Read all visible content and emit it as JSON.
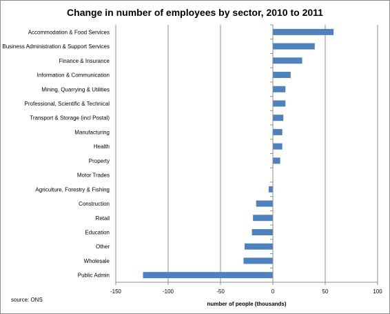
{
  "chart_data": {
    "type": "bar",
    "orientation": "horizontal",
    "title": "Change in number of employees by sector, 2010 to 2011",
    "xlabel": "number of people (thousands)",
    "ylabel": "",
    "source": "source: ONS",
    "xlim": [
      -150,
      100
    ],
    "xticks": [
      "-150",
      "-100",
      "-50",
      "0",
      "50",
      "100"
    ],
    "xtick_values": [
      -150,
      -100,
      -50,
      0,
      50,
      100
    ],
    "grid": "vertical major gridlines",
    "legend": "none",
    "bar_color": "#4f81bd",
    "categories": [
      "Accommodation & Food Services",
      "Business Administration & Support Services",
      "Finance & Insurance",
      "Information & Communication",
      "Mining, Quarrying & Utilities",
      "Professional, Scientific & Technical",
      "Transport & Storage (incl Postal)",
      "Manufacturing",
      "Health",
      "Property",
      "Motor Trades",
      "Agriculture, Forestry & Fishing",
      "Construction",
      "Retail",
      "Education",
      "Other",
      "Wholesale",
      "Public Admin"
    ],
    "values": [
      58,
      40,
      28,
      17,
      12,
      12,
      10,
      9,
      9,
      7,
      0,
      -4,
      -16,
      -19,
      -20,
      -27,
      -28,
      -124
    ]
  }
}
